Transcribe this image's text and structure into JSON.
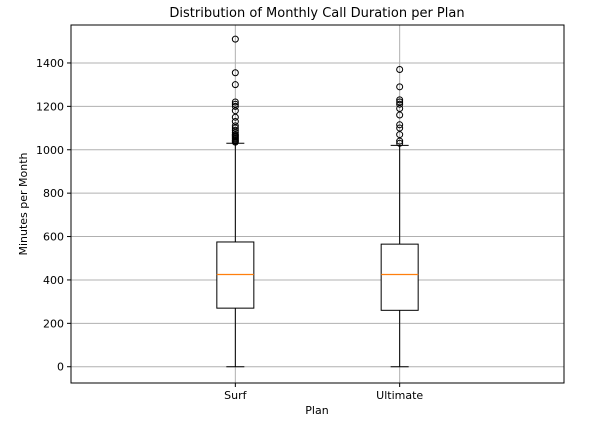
{
  "chart_data": {
    "type": "box",
    "title": "Distribution of Monthly Call Duration per Plan",
    "xlabel": "Plan",
    "ylabel": "Minutes per Month",
    "ylim": [
      -75,
      1575
    ],
    "yticks": [
      0,
      200,
      400,
      600,
      800,
      1000,
      1200,
      1400
    ],
    "grid": true,
    "categories": [
      "Surf",
      "Ultimate"
    ],
    "boxes": [
      {
        "name": "Surf",
        "whisker_low": 0,
        "q1": 270,
        "median": 425,
        "q3": 575,
        "whisker_high": 1030,
        "outliers": [
          1035,
          1040,
          1045,
          1050,
          1055,
          1060,
          1065,
          1070,
          1080,
          1090,
          1100,
          1110,
          1130,
          1150,
          1180,
          1200,
          1210,
          1220,
          1300,
          1355,
          1510
        ]
      },
      {
        "name": "Ultimate",
        "whisker_low": 0,
        "q1": 260,
        "median": 425,
        "q3": 565,
        "whisker_high": 1020,
        "outliers": [
          1030,
          1040,
          1070,
          1100,
          1115,
          1160,
          1190,
          1210,
          1220,
          1230,
          1290,
          1370
        ]
      }
    ],
    "colors": {
      "box": "#000000",
      "median": "#ff7f0e",
      "grid": "#b0b0b0"
    }
  }
}
